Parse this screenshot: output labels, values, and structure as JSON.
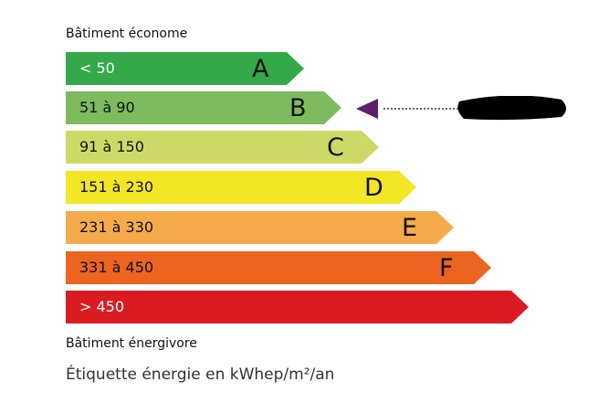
{
  "top_label": "Bâtiment économe",
  "bottom_label": "Bâtiment énergivore",
  "footer": "Étiquette énergie en kWhep/m²/an",
  "classes": [
    {
      "range": "< 50",
      "letter": "A",
      "color": "#33a94a",
      "text_color": "#ffffff"
    },
    {
      "range": "51 à 90",
      "letter": "B",
      "color": "#7dbb5e",
      "text_color": "#111111"
    },
    {
      "range": "91 à 150",
      "letter": "C",
      "color": "#cdd966",
      "text_color": "#111111"
    },
    {
      "range": "151 à 230",
      "letter": "D",
      "color": "#f2e625",
      "text_color": "#111111"
    },
    {
      "range": "231 à 330",
      "letter": "E",
      "color": "#f5ab4c",
      "text_color": "#111111"
    },
    {
      "range": "331 à 450",
      "letter": "F",
      "color": "#eb6520",
      "text_color": "#111111"
    },
    {
      "range": "> 450",
      "letter": "",
      "color": "#da1c22",
      "text_color": "#ffffff"
    }
  ],
  "indicator": {
    "class": "B",
    "color": "#5b1f6e"
  }
}
